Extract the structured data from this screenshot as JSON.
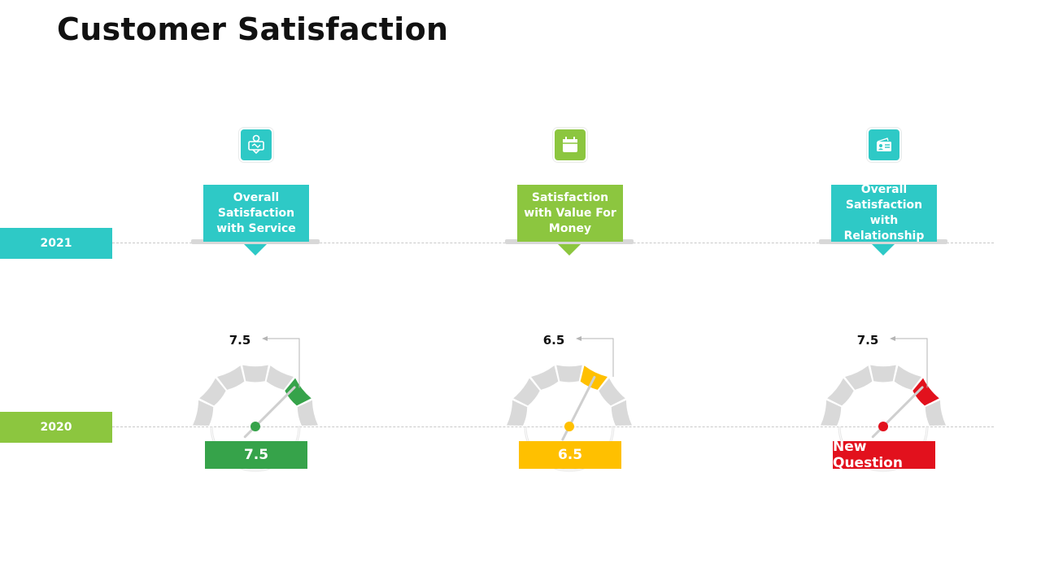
{
  "title": "Customer Satisfaction",
  "years": {
    "top": {
      "label": "2021",
      "color": "#2ec9c6"
    },
    "bottom": {
      "label": "2020",
      "color": "#8cc63f"
    }
  },
  "metrics": [
    {
      "label": "Overall Satisfaction with Service",
      "label_color": "#2ec9c6",
      "icon": "service-icon",
      "icon_color": "#2ec9c6",
      "annotation": "7.5",
      "score_text": "7.5",
      "accent": "#36a34a",
      "gauge_value": 7.5
    },
    {
      "label": "Satisfaction with Value For Money",
      "label_color": "#8cc63f",
      "icon": "calendar-icon",
      "icon_color": "#8cc63f",
      "annotation": "6.5",
      "score_text": "6.5",
      "accent": "#ffc000",
      "gauge_value": 6.5
    },
    {
      "label": "Overall Satisfaction with Relationship",
      "label_color": "#2ec9c6",
      "icon": "id-card-icon",
      "icon_color": "#2ec9c6",
      "annotation": "7.5",
      "score_text": "New Question",
      "accent": "#e2111d",
      "gauge_value": 7.5
    }
  ],
  "gauge": {
    "scale_min": 0,
    "scale_max": 10,
    "segments": 7
  }
}
